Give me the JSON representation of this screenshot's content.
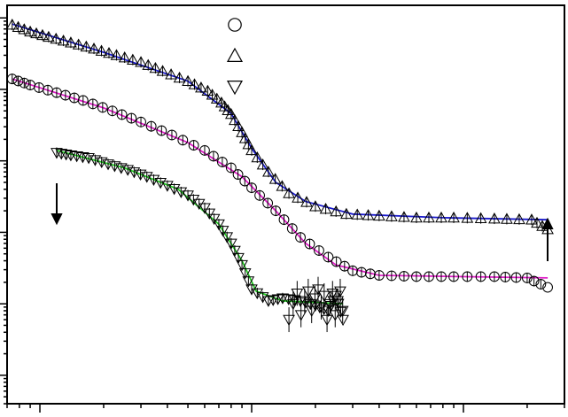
{
  "chart_data": {
    "type": "scatter",
    "title": "",
    "xlabel": "",
    "ylabel": "",
    "xscale": "log",
    "yscale": "log",
    "xlim": [
      0.07,
      30
    ],
    "ylim": [
      0.0004,
      150
    ],
    "grid": false,
    "legend": "top-center",
    "series": [
      {
        "marker": "triangle-up",
        "fit_color": "#1a1acc",
        "arrow": "up",
        "points": [
          [
            0.074,
            80
          ],
          [
            0.09,
            64
          ],
          [
            0.11,
            54
          ],
          [
            0.14,
            45
          ],
          [
            0.18,
            37
          ],
          [
            0.23,
            30
          ],
          [
            0.3,
            24
          ],
          [
            0.38,
            18
          ],
          [
            0.5,
            13
          ],
          [
            0.62,
            9.5
          ],
          [
            0.72,
            6.5
          ],
          [
            0.8,
            4.5
          ],
          [
            0.9,
            2.5
          ],
          [
            1.0,
            1.4
          ],
          [
            1.2,
            0.7
          ],
          [
            1.5,
            0.35
          ],
          [
            2.0,
            0.23
          ],
          [
            2.8,
            0.18
          ],
          [
            4,
            0.17
          ],
          [
            6,
            0.16
          ],
          [
            9,
            0.16
          ],
          [
            14,
            0.155
          ],
          [
            21,
            0.15
          ],
          [
            25,
            0.11
          ]
        ],
        "fit": [
          [
            0.074,
            82
          ],
          [
            0.2,
            33
          ],
          [
            0.5,
            13
          ],
          [
            0.8,
            4.6
          ],
          [
            1.0,
            1.5
          ],
          [
            1.3,
            0.5
          ],
          [
            1.8,
            0.27
          ],
          [
            3,
            0.18
          ],
          [
            8,
            0.16
          ],
          [
            25,
            0.15
          ]
        ]
      },
      {
        "marker": "circle",
        "fit_color": "#e01ec8",
        "points": [
          [
            0.074,
            14
          ],
          [
            0.09,
            11.5
          ],
          [
            0.12,
            9
          ],
          [
            0.16,
            7
          ],
          [
            0.22,
            5
          ],
          [
            0.3,
            3.5
          ],
          [
            0.42,
            2.3
          ],
          [
            0.6,
            1.4
          ],
          [
            0.8,
            0.8
          ],
          [
            1.0,
            0.42
          ],
          [
            1.3,
            0.2
          ],
          [
            1.7,
            0.085
          ],
          [
            2.3,
            0.045
          ],
          [
            3,
            0.029
          ],
          [
            4,
            0.025
          ],
          [
            6,
            0.024
          ],
          [
            9,
            0.024
          ],
          [
            14,
            0.024
          ],
          [
            20,
            0.023
          ],
          [
            25,
            0.017
          ]
        ],
        "fit": [
          [
            0.074,
            14
          ],
          [
            0.2,
            5.5
          ],
          [
            0.5,
            1.8
          ],
          [
            0.9,
            0.6
          ],
          [
            1.3,
            0.2
          ],
          [
            1.8,
            0.07
          ],
          [
            2.5,
            0.035
          ],
          [
            4,
            0.025
          ],
          [
            25,
            0.023
          ]
        ]
      },
      {
        "marker": "triangle-down",
        "fit_color": "#22cc22",
        "arrow": "down",
        "points": [
          [
            0.12,
            1.3
          ],
          [
            0.14,
            1.2
          ],
          [
            0.17,
            1.1
          ],
          [
            0.21,
            0.9
          ],
          [
            0.26,
            0.75
          ],
          [
            0.32,
            0.6
          ],
          [
            0.4,
            0.45
          ],
          [
            0.5,
            0.33
          ],
          [
            0.6,
            0.22
          ],
          [
            0.7,
            0.13
          ],
          [
            0.8,
            0.07
          ],
          [
            0.9,
            0.035
          ],
          [
            1.0,
            0.016
          ],
          [
            1.2,
            0.011
          ],
          [
            1.4,
            0.012
          ],
          [
            1.7,
            0.011
          ],
          [
            2.0,
            0.0095
          ],
          [
            2.3,
            0.008
          ],
          [
            2.5,
            0.013
          ],
          [
            2.7,
            0.006
          ]
        ],
        "fit": [
          [
            0.12,
            1.4
          ],
          [
            0.25,
            0.8
          ],
          [
            0.45,
            0.4
          ],
          [
            0.7,
            0.13
          ],
          [
            0.9,
            0.04
          ],
          [
            1.05,
            0.015
          ],
          [
            1.4,
            0.011
          ],
          [
            2.7,
            0.01
          ]
        ]
      }
    ]
  }
}
